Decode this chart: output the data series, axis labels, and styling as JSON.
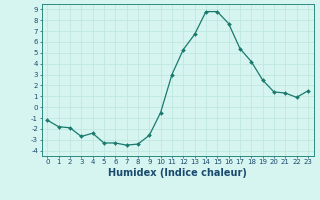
{
  "x": [
    0,
    1,
    2,
    3,
    4,
    5,
    6,
    7,
    8,
    9,
    10,
    11,
    12,
    13,
    14,
    15,
    16,
    17,
    18,
    19,
    20,
    21,
    22,
    23
  ],
  "y": [
    -1.2,
    -1.8,
    -1.9,
    -2.7,
    -2.4,
    -3.3,
    -3.3,
    -3.5,
    -3.4,
    -2.6,
    -0.5,
    3.0,
    5.3,
    6.7,
    8.8,
    8.8,
    7.7,
    5.4,
    4.2,
    2.5,
    1.4,
    1.3,
    0.9,
    1.5
  ],
  "line_color": "#1a7a6e",
  "marker": "D",
  "marker_size": 2.0,
  "background_color": "#d6f5f0",
  "grid_color": "#c0e8e0",
  "xlabel": "Humidex (Indice chaleur)",
  "xlim": [
    -0.5,
    23.5
  ],
  "ylim": [
    -4.5,
    9.5
  ],
  "yticks": [
    -4,
    -3,
    -2,
    -1,
    0,
    1,
    2,
    3,
    4,
    5,
    6,
    7,
    8,
    9
  ],
  "xticks": [
    0,
    1,
    2,
    3,
    4,
    5,
    6,
    7,
    8,
    9,
    10,
    11,
    12,
    13,
    14,
    15,
    16,
    17,
    18,
    19,
    20,
    21,
    22,
    23
  ],
  "tick_fontsize": 5.0,
  "xlabel_fontsize": 7.0,
  "line_width": 0.9,
  "spine_color": "#2a8a7e",
  "text_color": "#1a4a6e"
}
